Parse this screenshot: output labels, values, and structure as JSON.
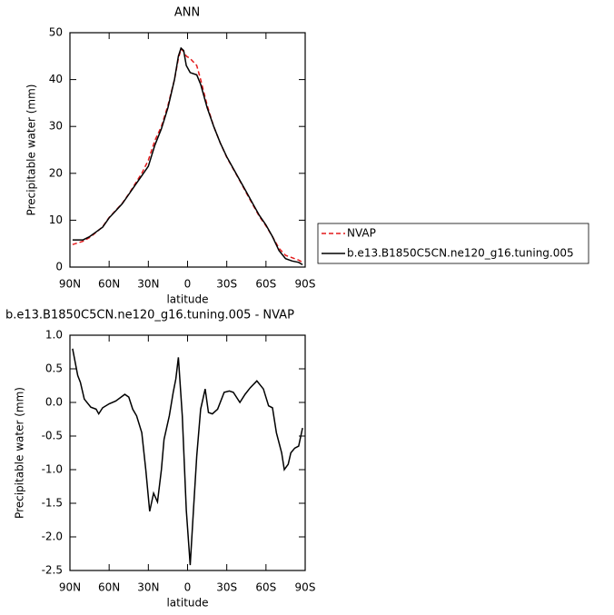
{
  "chart_data": [
    {
      "type": "line",
      "title": "ANN",
      "xlabel": "latitude",
      "ylabel": "Precipitable water (mm)",
      "x": [
        88,
        80,
        75,
        70,
        65,
        60,
        55,
        50,
        45,
        40,
        35,
        30,
        25,
        20,
        15,
        10,
        7,
        5,
        3,
        1,
        -2,
        -7,
        -10,
        -15,
        -20,
        -25,
        -30,
        -35,
        -40,
        -45,
        -50,
        -55,
        -60,
        -65,
        -70,
        -75,
        -80,
        -85,
        -88
      ],
      "series": [
        {
          "name": "NVAP",
          "color": "#e31a1c",
          "style": "dashed",
          "values": [
            4.8,
            5.5,
            6.3,
            7.4,
            8.6,
            10.6,
            12.1,
            13.6,
            15.6,
            17.8,
            20,
            22.8,
            27,
            30,
            34.5,
            40,
            44.5,
            46.5,
            46,
            45,
            44.5,
            43,
            40,
            34.5,
            30,
            26.5,
            23.4,
            20.9,
            18.4,
            15.8,
            13.3,
            10.8,
            8.8,
            6.5,
            4,
            2.5,
            2,
            1.5,
            1
          ]
        },
        {
          "name": "b.e13.B1850C5CN.ne120_g16.tuning.005",
          "color": "#000000",
          "style": "solid",
          "values": [
            5.8,
            5.8,
            6.5,
            7.5,
            8.5,
            10.5,
            12,
            13.5,
            15.5,
            17.5,
            19.5,
            21.5,
            26,
            29.5,
            34,
            40,
            45,
            46.7,
            46.2,
            43,
            41.5,
            41,
            39,
            34,
            30,
            26.5,
            23.5,
            21,
            18.5,
            16,
            13.5,
            11,
            9,
            6.5,
            3.5,
            1.8,
            1.3,
            1,
            0.5
          ]
        }
      ],
      "xlim": [
        90,
        -90
      ],
      "xticks": [
        {
          "value": 90,
          "label": "90N"
        },
        {
          "value": 60,
          "label": "60N"
        },
        {
          "value": 30,
          "label": "30N"
        },
        0,
        {
          "value": -30,
          "label": "30S"
        },
        {
          "value": -60,
          "label": "60S"
        },
        {
          "value": -90,
          "label": "90S"
        }
      ],
      "ylim": [
        0,
        50
      ],
      "yticks": [
        0,
        10,
        20,
        30,
        40,
        50
      ]
    },
    {
      "type": "line",
      "title": "b.e13.B1850C5CN.ne120_g16.tuning.005 - NVAP",
      "xlabel": "latitude",
      "ylabel": "Precipitable water (mm)",
      "x": [
        88,
        84,
        82,
        79,
        74,
        70,
        68,
        65,
        60,
        55,
        48,
        45,
        42,
        39,
        35,
        32,
        29,
        26,
        23,
        20,
        18,
        14,
        11,
        9,
        7,
        4,
        1,
        -2,
        -4.5,
        -7,
        -10,
        -13.5,
        -16,
        -19,
        -23,
        -28,
        -32,
        -35,
        -40,
        -44,
        -48,
        -53,
        -58,
        -62,
        -65,
        -68,
        -72,
        -74,
        -77,
        -79,
        -82,
        -85,
        -88
      ],
      "color": "#000000",
      "values": [
        0.8,
        0.4,
        0.3,
        0.05,
        -0.07,
        -0.1,
        -0.17,
        -0.08,
        -0.02,
        0.02,
        0.12,
        0.08,
        -0.1,
        -0.2,
        -0.45,
        -1.0,
        -1.62,
        -1.35,
        -1.48,
        -1.0,
        -0.55,
        -0.2,
        0.15,
        0.35,
        0.67,
        -0.2,
        -1.6,
        -2.42,
        -1.6,
        -0.8,
        -0.1,
        0.2,
        -0.15,
        -0.17,
        -0.1,
        0.15,
        0.17,
        0.15,
        0.0,
        0.12,
        0.22,
        0.32,
        0.2,
        -0.05,
        -0.08,
        -0.45,
        -0.75,
        -1.0,
        -0.92,
        -0.75,
        -0.68,
        -0.65,
        -0.38
      ],
      "xlim": [
        90,
        -90
      ],
      "xticks": [
        {
          "value": 90,
          "label": "90N"
        },
        {
          "value": 60,
          "label": "60N"
        },
        {
          "value": 30,
          "label": "30N"
        },
        0,
        {
          "value": -30,
          "label": "30S"
        },
        {
          "value": -60,
          "label": "60S"
        },
        {
          "value": -90,
          "label": "90S"
        }
      ],
      "ylim": [
        -2.5,
        1.0
      ],
      "yticks": [
        {
          "value": 1,
          "label": "1.0"
        },
        0.5,
        {
          "value": 0,
          "label": "0.0"
        },
        -0.5,
        {
          "value": -1,
          "label": "-1.0"
        },
        -1.5,
        {
          "value": -2,
          "label": "-2.0"
        },
        -2.5
      ]
    }
  ]
}
